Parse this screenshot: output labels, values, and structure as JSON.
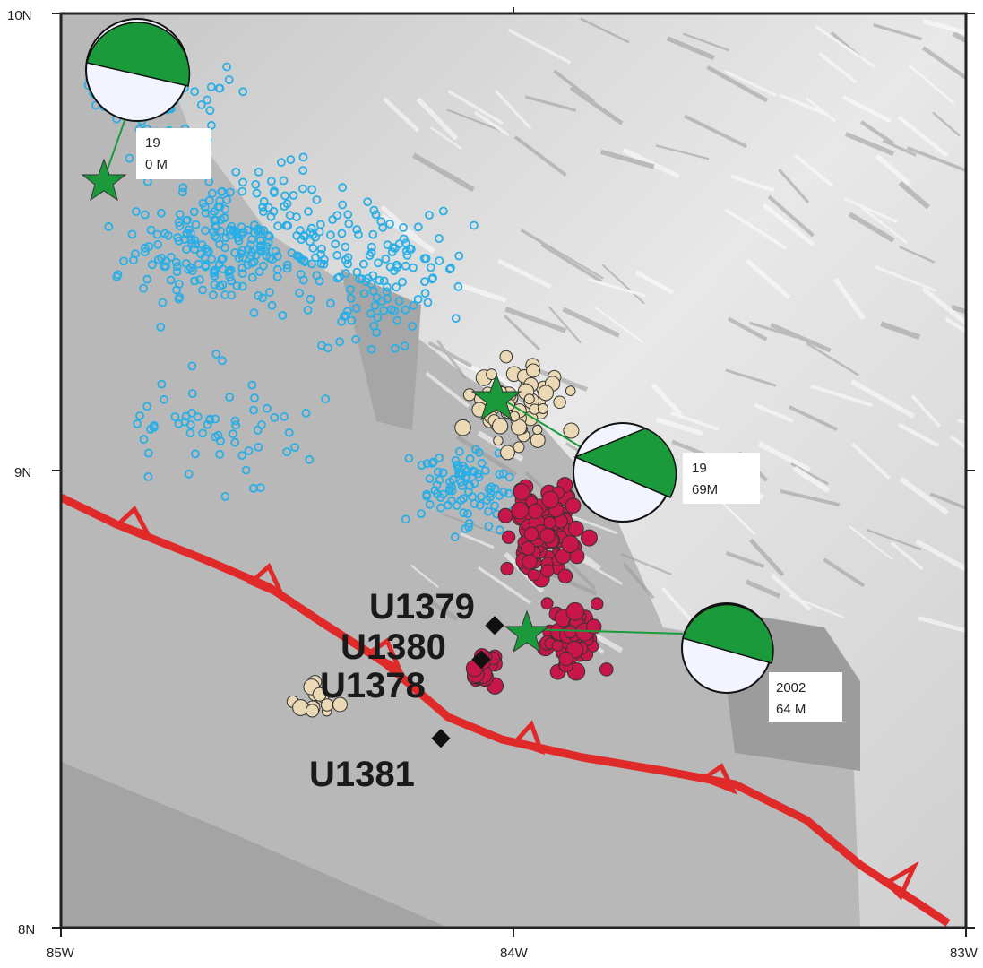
{
  "map": {
    "axis": {
      "lat_top": "10N",
      "lat_mid": "9N",
      "lat_bottom": "8N",
      "lon_left": "85W",
      "lon_mid": "84W",
      "lon_right": "83W"
    },
    "sites": [
      "U1379",
      "U1380",
      "U1378",
      "U1381"
    ],
    "events": [
      {
        "year": "19",
        "mag": "0 M",
        "color": "#1a9a3a"
      },
      {
        "year": "19",
        "mag": "69M",
        "color": "#1a9a3a"
      },
      {
        "year": "2002",
        "mag": "64 M",
        "color": "#1a9a3a"
      }
    ],
    "colors": {
      "trench": "#e02a2a",
      "seismicity_cyan": "#29aee6",
      "seismicity_red": "#c8164a",
      "seismicity_tan": "#ead9b4",
      "focal_green": "#1a9a3a",
      "land": "#d8d8d8",
      "sea": "#9c9c9c"
    }
  }
}
